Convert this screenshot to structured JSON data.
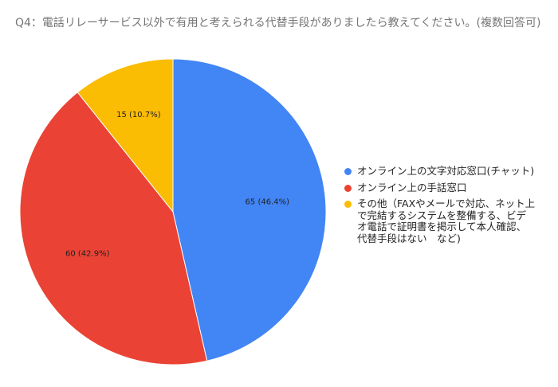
{
  "chart_data": {
    "type": "pie",
    "title": "Q4：電話リレーサービス以外で有用と考えられる代替手段がありましたら教えてください。(複数回答可)",
    "categories": [
      "オンライン上の文字対応窓口(チャット)",
      "オンライン上の手話窓口",
      "その他（FAXやメールで対応、ネット上で完結するシステムを整備する、ビデオ電話で証明書を掲示して本人確認、代替手段はない　など)"
    ],
    "values": [
      65,
      60,
      15
    ],
    "data_labels": [
      "65 (46.4%)",
      "60 (42.9%)",
      "15 (10.7%)"
    ],
    "colors": [
      "#4285f4",
      "#ea4335",
      "#fbbc04"
    ],
    "legend_position": "right",
    "start": "top, clockwise"
  }
}
